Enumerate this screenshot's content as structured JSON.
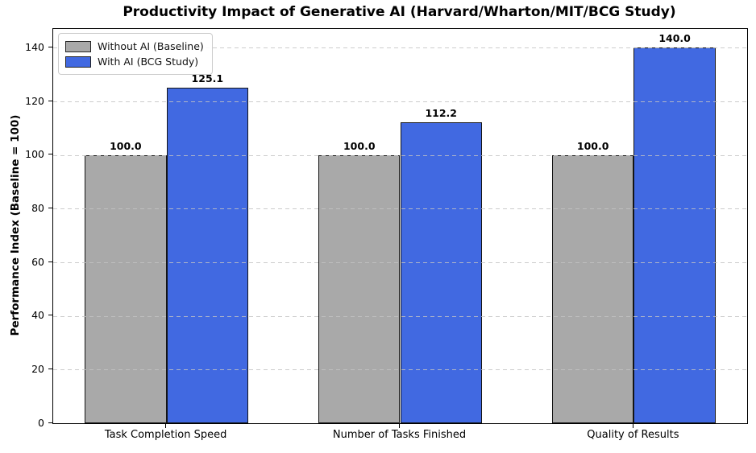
{
  "chart_data": {
    "type": "bar",
    "title": "Productivity Impact of Generative AI (Harvard/Wharton/MIT/BCG Study)",
    "ylabel": "Performance Index (Baseline = 100)",
    "xlabel": "",
    "categories": [
      "Task Completion Speed",
      "Number of Tasks Finished",
      "Quality of Results"
    ],
    "series": [
      {
        "name": "Without AI (Baseline)",
        "color": "#a9a9a9",
        "values": [
          100.0,
          100.0,
          100.0
        ]
      },
      {
        "name": "With AI (BCG Study)",
        "color": "#4169e1",
        "values": [
          125.1,
          112.2,
          140.0
        ]
      }
    ],
    "value_labels": [
      [
        "100.0",
        "100.0",
        "100.0"
      ],
      [
        "125.1",
        "112.2",
        "140.0"
      ]
    ],
    "yticks": [
      0,
      20,
      40,
      60,
      80,
      100,
      120,
      140
    ],
    "ylim": [
      0,
      147
    ],
    "grid": true,
    "grid_line_style": "dashed",
    "grid_color": "#c3c3c3",
    "bar_edge_color": "#141414",
    "legend_position": "upper-left",
    "background_color": "#ffffff"
  }
}
